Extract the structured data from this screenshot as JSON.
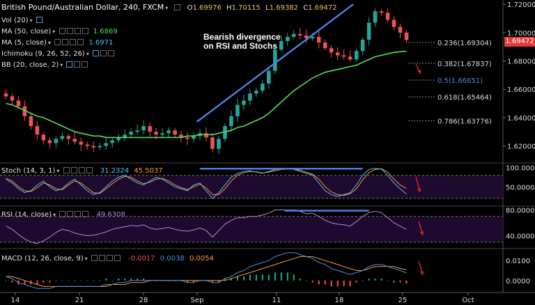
{
  "header": {
    "title": "British Pound/Australian Dollar, 240, FXCM",
    "ohlc": [
      {
        "k": "O",
        "v": "1.69976"
      },
      {
        "k": "H",
        "v": "1.70115"
      },
      {
        "k": "L",
        "v": "1.69382"
      },
      {
        "k": "C",
        "v": "1.69472"
      }
    ]
  },
  "indicators": [
    {
      "label": "Vol (20)",
      "value": "",
      "color": ""
    },
    {
      "label": "MA (50, close)",
      "value": "1.6869",
      "color": "#55e055"
    },
    {
      "label": "MA (5, close)",
      "value": "1.6971",
      "color": "#4fc3f7"
    },
    {
      "label": "Ichimoku (9, 26, 52, 26)",
      "value": "",
      "color": ""
    },
    {
      "label": "BB (20, close, 2)",
      "value": "",
      "color": ""
    }
  ],
  "annotation": {
    "line1": "Bearish divergence",
    "line2": "on RSI and Stochs"
  },
  "price_tag": "1.69472",
  "colors": {
    "up": "#26a69a",
    "down": "#ef5350",
    "ma50": "#55e055",
    "ma5": "#4fc3f7",
    "trend": "#4a7fe0",
    "arrow": "#e02020",
    "fib": "#888888",
    "panel": "#1d0a2e"
  },
  "chart_data": [
    {
      "type": "candlestick",
      "title": "British Pound/Australian Dollar, 240, FXCM",
      "x_ticks": [
        "14",
        "21",
        "28",
        "Sep",
        "11",
        "18",
        "25",
        "Oct"
      ],
      "y_ticks": [
        "1.62000",
        "1.64000",
        "1.66000",
        "1.68000",
        "1.70000",
        "1.72000"
      ],
      "ylim": [
        1.608,
        1.723
      ],
      "closes": [
        1.655,
        1.652,
        1.648,
        1.641,
        1.634,
        1.628,
        1.624,
        1.622,
        1.625,
        1.627,
        1.625,
        1.623,
        1.621,
        1.62,
        1.619,
        1.62,
        1.622,
        1.624,
        1.626,
        1.628,
        1.63,
        1.631,
        1.634,
        1.63,
        1.628,
        1.629,
        1.631,
        1.628,
        1.626,
        1.625,
        1.627,
        1.629,
        1.626,
        1.618,
        1.625,
        1.634,
        1.641,
        1.649,
        1.652,
        1.657,
        1.659,
        1.664,
        1.673,
        1.688,
        1.694,
        1.697,
        1.699,
        1.698,
        1.696,
        1.697,
        1.693,
        1.689,
        1.686,
        1.684,
        1.683,
        1.681,
        1.687,
        1.695,
        1.707,
        1.715,
        1.714,
        1.709,
        1.704,
        1.7,
        1.69472
      ],
      "ma50": [
        1.65,
        1.649,
        1.647,
        1.645,
        1.643,
        1.641,
        1.64,
        1.638,
        1.636,
        1.634,
        1.632,
        1.63,
        1.629,
        1.628,
        1.627,
        1.627,
        1.626,
        1.626,
        1.626,
        1.626,
        1.626,
        1.626,
        1.626,
        1.626,
        1.626,
        1.626,
        1.626,
        1.626,
        1.626,
        1.627,
        1.627,
        1.628,
        1.628,
        1.628,
        1.629,
        1.63,
        1.631,
        1.633,
        1.634,
        1.636,
        1.638,
        1.64,
        1.643,
        1.647,
        1.651,
        1.655,
        1.659,
        1.662,
        1.665,
        1.668,
        1.67,
        1.672,
        1.673,
        1.674,
        1.675,
        1.676,
        1.677,
        1.679,
        1.681,
        1.683,
        1.684,
        1.685,
        1.686,
        1.6865,
        1.6869
      ],
      "trend_line": {
        "from": [
          30.5,
          1.637
        ],
        "to": [
          55.5,
          1.72
        ]
      },
      "fib_levels": [
        {
          "label": "0.236(1.69304)",
          "value": 1.69304
        },
        {
          "label": "0.382(1.67837)",
          "value": 1.67837
        },
        {
          "label": "0.5(1.66651)",
          "value": 1.66651
        },
        {
          "label": "0.618(1.65464)",
          "value": 1.65464
        },
        {
          "label": "0.786(1.63776)",
          "value": 1.63776
        }
      ],
      "annotations": [
        "Bearish divergence",
        "on RSI and Stochs"
      ]
    },
    {
      "type": "line",
      "title": "Stoch (14, 3, 1)",
      "values_text": [
        "31.2324",
        "45.5037"
      ],
      "y_ticks": [
        "50.0000",
        "100.0000"
      ],
      "ylim": [
        0,
        112
      ],
      "k": [
        70,
        60,
        45,
        35,
        40,
        55,
        65,
        50,
        40,
        45,
        60,
        70,
        55,
        40,
        30,
        35,
        50,
        65,
        75,
        80,
        70,
        60,
        55,
        65,
        75,
        70,
        60,
        50,
        45,
        40,
        55,
        60,
        40,
        20,
        35,
        55,
        75,
        85,
        90,
        92,
        88,
        85,
        90,
        95,
        96,
        97,
        95,
        90,
        85,
        80,
        60,
        40,
        30,
        25,
        30,
        35,
        55,
        80,
        95,
        98,
        96,
        80,
        60,
        45,
        31.2
      ],
      "d": [
        72,
        65,
        50,
        40,
        38,
        48,
        60,
        55,
        45,
        43,
        55,
        65,
        60,
        47,
        35,
        33,
        45,
        58,
        70,
        77,
        75,
        65,
        58,
        62,
        70,
        72,
        65,
        55,
        48,
        43,
        50,
        57,
        47,
        30,
        30,
        45,
        65,
        80,
        87,
        90,
        89,
        86,
        88,
        92,
        95,
        96,
        96,
        93,
        88,
        83,
        70,
        50,
        37,
        30,
        28,
        32,
        45,
        68,
        87,
        95,
        97,
        88,
        70,
        55,
        45.5
      ],
      "levels": [
        20,
        80
      ],
      "divergence_line": {
        "from": [
          31,
          97
        ],
        "to": [
          57,
          97
        ]
      }
    },
    {
      "type": "line",
      "title": "RSI (14, close)",
      "values_text": [
        "49.6308"
      ],
      "y_ticks": [
        "40.0000",
        "80.0000"
      ],
      "ylim": [
        20,
        86
      ],
      "rsi": [
        55,
        50,
        42,
        35,
        30,
        28,
        32,
        38,
        45,
        50,
        48,
        44,
        42,
        40,
        41,
        43,
        46,
        50,
        52,
        54,
        56,
        55,
        57,
        52,
        50,
        51,
        53,
        50,
        48,
        47,
        49,
        52,
        48,
        38,
        48,
        58,
        64,
        68,
        68,
        70,
        70,
        72,
        75,
        80,
        80,
        80,
        80,
        78,
        74,
        75,
        70,
        64,
        60,
        58,
        57,
        55,
        62,
        70,
        76,
        78,
        76,
        68,
        60,
        55,
        49.6
      ],
      "levels": [
        30,
        70
      ],
      "divergence_line": {
        "from": [
          44.5,
          79
        ],
        "to": [
          58,
          79
        ]
      }
    },
    {
      "type": "line",
      "title": "MACD (12, 26, close, 9)",
      "values_text": [
        "-0.0017",
        "0.0038",
        "0.0054"
      ],
      "y_ticks": [
        "0.0000",
        "0.0100"
      ],
      "ylim": [
        -0.006,
        0.016
      ],
      "macd": [
        0.002,
        0.001,
        -0.001,
        -0.002,
        -0.003,
        -0.004,
        -0.004,
        -0.004,
        -0.003,
        -0.003,
        -0.003,
        -0.003,
        -0.003,
        -0.003,
        -0.003,
        -0.003,
        -0.002,
        -0.002,
        -0.001,
        -0.001,
        0.0,
        0.0,
        0.0,
        0.0,
        0.0,
        0.0,
        0.0,
        0.0,
        0.0,
        -0.001,
        -0.001,
        0.0,
        0.0,
        -0.001,
        -0.001,
        0.001,
        0.002,
        0.004,
        0.005,
        0.007,
        0.008,
        0.009,
        0.01,
        0.012,
        0.013,
        0.014,
        0.014,
        0.013,
        0.012,
        0.011,
        0.009,
        0.008,
        0.006,
        0.005,
        0.004,
        0.003,
        0.004,
        0.005,
        0.007,
        0.008,
        0.008,
        0.007,
        0.006,
        0.005,
        0.0038
      ],
      "signal": [
        0.002,
        0.002,
        0.001,
        0.0,
        -0.001,
        -0.002,
        -0.003,
        -0.003,
        -0.003,
        -0.003,
        -0.003,
        -0.003,
        -0.003,
        -0.003,
        -0.003,
        -0.003,
        -0.003,
        -0.002,
        -0.002,
        -0.002,
        -0.001,
        -0.001,
        -0.001,
        0.0,
        0.0,
        0.0,
        0.0,
        0.0,
        0.0,
        0.0,
        0.0,
        0.0,
        0.0,
        0.0,
        0.0,
        0.0,
        0.001,
        0.002,
        0.003,
        0.004,
        0.005,
        0.006,
        0.007,
        0.008,
        0.009,
        0.01,
        0.011,
        0.012,
        0.012,
        0.012,
        0.011,
        0.01,
        0.009,
        0.008,
        0.007,
        0.006,
        0.005,
        0.005,
        0.006,
        0.007,
        0.007,
        0.007,
        0.007,
        0.006,
        0.0054
      ]
    }
  ]
}
